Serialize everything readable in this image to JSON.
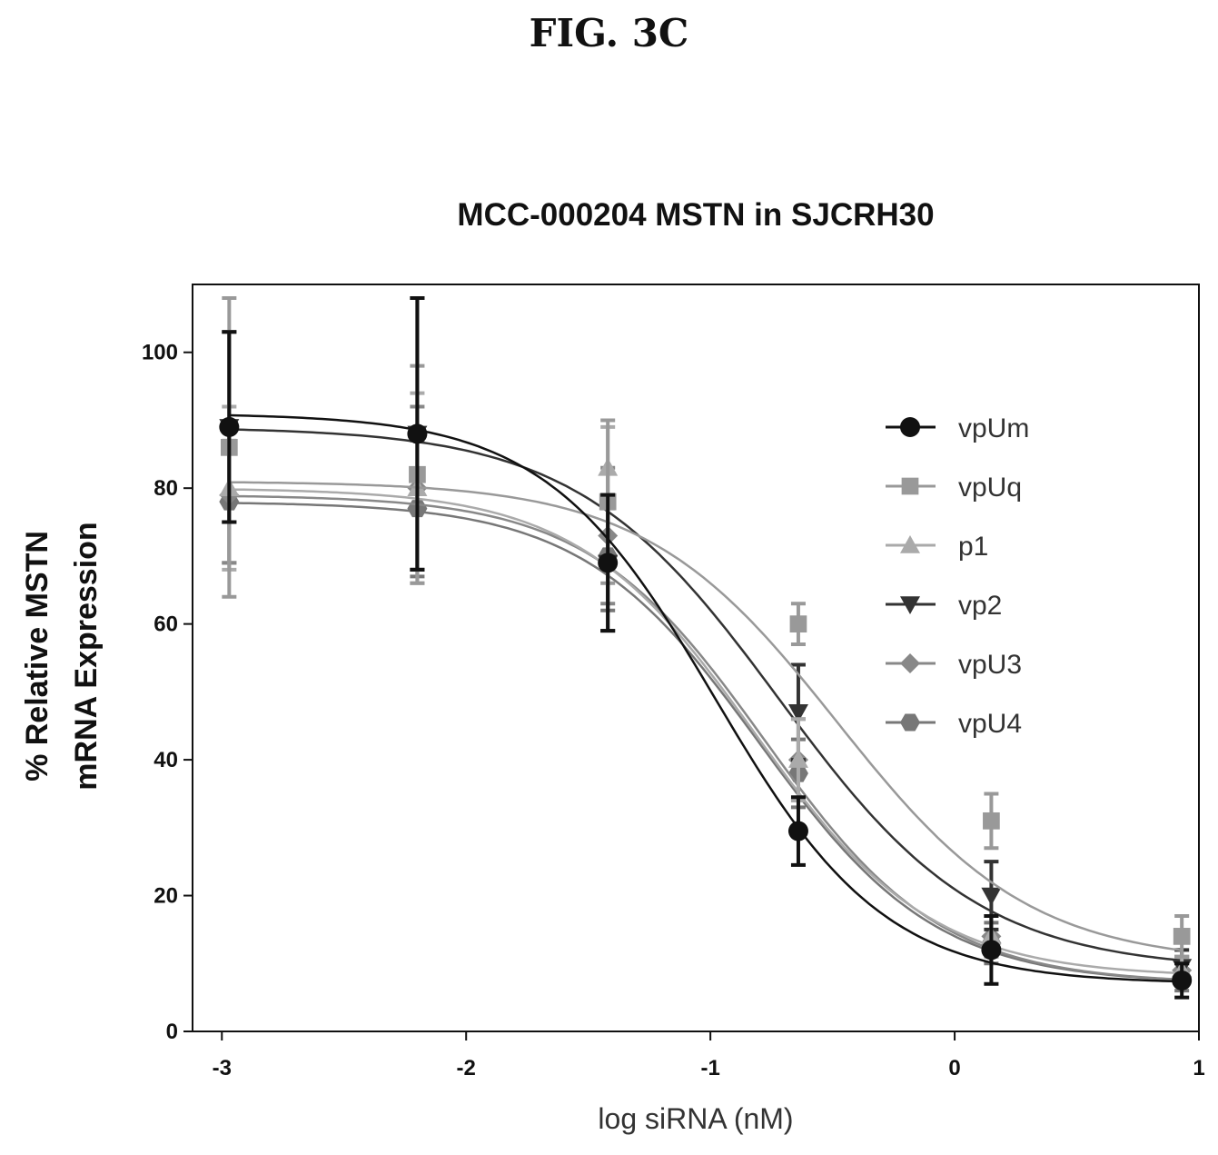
{
  "figure_label": "FIG. 3C",
  "chart_data": {
    "type": "line",
    "title": "MCC-000204 MSTN in  SJCRH30",
    "xlabel": "log siRNA (nM)",
    "ylabel_lines": [
      "% Relative MSTN",
      "mRNA Expression"
    ],
    "xlim": [
      -3.12,
      1.0
    ],
    "ylim": [
      0,
      110
    ],
    "x_ticks": [
      -3,
      -2,
      -1,
      0,
      1
    ],
    "y_ticks": [
      0,
      20,
      40,
      60,
      80,
      100
    ],
    "grid": false,
    "legend_position": "right",
    "x": [
      -2.97,
      -2.2,
      -1.42,
      -0.64,
      0.15,
      0.93
    ],
    "series": [
      {
        "name": "vpUm",
        "marker": "circle",
        "color": "#111111",
        "values": [
          89,
          88,
          69,
          29.5,
          12,
          7.5
        ],
        "errors": [
          14,
          20,
          10,
          5,
          5,
          2.5
        ],
        "fit": {
          "top": 91,
          "bottom": 7,
          "logIC50": -0.98,
          "hill": 1.25
        }
      },
      {
        "name": "vpUq",
        "marker": "square",
        "color": "#999999",
        "values": [
          86,
          82,
          78,
          60,
          31,
          14
        ],
        "errors": [
          22,
          16,
          12,
          3,
          4,
          3
        ],
        "fit": {
          "top": 81,
          "bottom": 10,
          "logIC50": -0.48,
          "hill": 1.1
        }
      },
      {
        "name": "p1",
        "marker": "triangle-up",
        "color": "#aaaaaa",
        "values": [
          80,
          80,
          83,
          40,
          14,
          9
        ],
        "errors": [
          12,
          14,
          6,
          6,
          3,
          2
        ],
        "fit": {
          "top": 80,
          "bottom": 8,
          "logIC50": -0.82,
          "hill": 1.2
        }
      },
      {
        "name": "vp2",
        "marker": "triangle-down",
        "color": "#333333",
        "values": [
          89,
          88,
          69,
          47,
          20,
          9.5
        ],
        "errors": [
          14,
          20,
          10,
          7,
          5,
          2.5
        ],
        "fit": {
          "top": 89,
          "bottom": 9,
          "logIC50": -0.72,
          "hill": 1.05
        }
      },
      {
        "name": "vpU3",
        "marker": "diamond",
        "color": "#888888",
        "values": [
          79,
          80,
          73,
          40,
          14,
          9
        ],
        "errors": [
          10,
          12,
          10,
          6,
          3,
          2
        ],
        "fit": {
          "top": 79,
          "bottom": 7,
          "logIC50": -0.78,
          "hill": 1.2
        }
      },
      {
        "name": "vpU4",
        "marker": "hexagon",
        "color": "#777777",
        "values": [
          78,
          77,
          70,
          38,
          13,
          8
        ],
        "errors": [
          9,
          10,
          8,
          5,
          3,
          2
        ],
        "fit": {
          "top": 78,
          "bottom": 7,
          "logIC50": -0.8,
          "hill": 1.2
        }
      }
    ]
  }
}
